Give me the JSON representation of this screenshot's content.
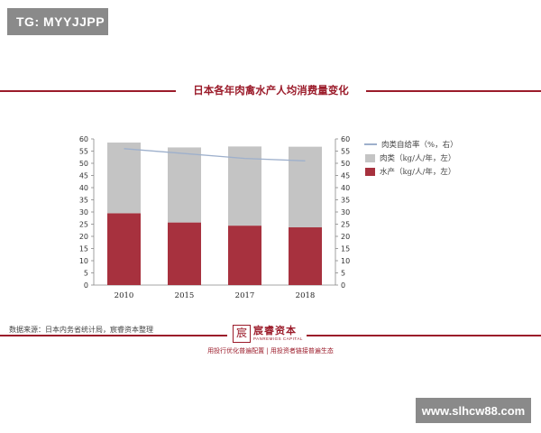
{
  "badge": "TG: MYYJJPP",
  "watermark": "www.slhcw88.com",
  "title": "日本各年肉禽水产人均消费量变化",
  "source": "数据来源：日本内务省统计局，宸睿资本整理",
  "logo": {
    "name": "宸睿资本",
    "sub": "PANREMIGS CAPITAL",
    "seal": "宸"
  },
  "footer": "用投行优化普遍配置 | 用投资者链接普遍生态",
  "colors": {
    "accent": "#9b1b2a",
    "meat": "#c4c4c4",
    "aquatic": "#a7313e",
    "selfrate": "#9eb0cc"
  },
  "chart_data": {
    "type": "bar",
    "stacked": true,
    "categories": [
      "2010",
      "2015",
      "2017",
      "2018"
    ],
    "series": [
      {
        "name": "水产（kg/人/年，左）",
        "type": "bar",
        "axis": "left",
        "values": [
          29.5,
          25.7,
          24.4,
          23.7
        ]
      },
      {
        "name": "肉类（kg/人/年，左）",
        "type": "bar",
        "axis": "left",
        "values": [
          29.0,
          30.8,
          32.5,
          33.1
        ]
      },
      {
        "name": "肉类自给率（%，右）",
        "type": "line",
        "axis": "right",
        "values": [
          56,
          54,
          52,
          51
        ]
      }
    ],
    "ylim_left": [
      0,
      60
    ],
    "ylim_right": [
      0,
      60
    ],
    "yticks": [
      0,
      5,
      10,
      15,
      20,
      25,
      30,
      35,
      40,
      45,
      50,
      55,
      60
    ],
    "legend_order": [
      "肉类自给率（%，右）",
      "肉类（kg/人/年，左）",
      "水产（kg/人/年，左）"
    ],
    "legend_position": "right",
    "grid": false
  }
}
